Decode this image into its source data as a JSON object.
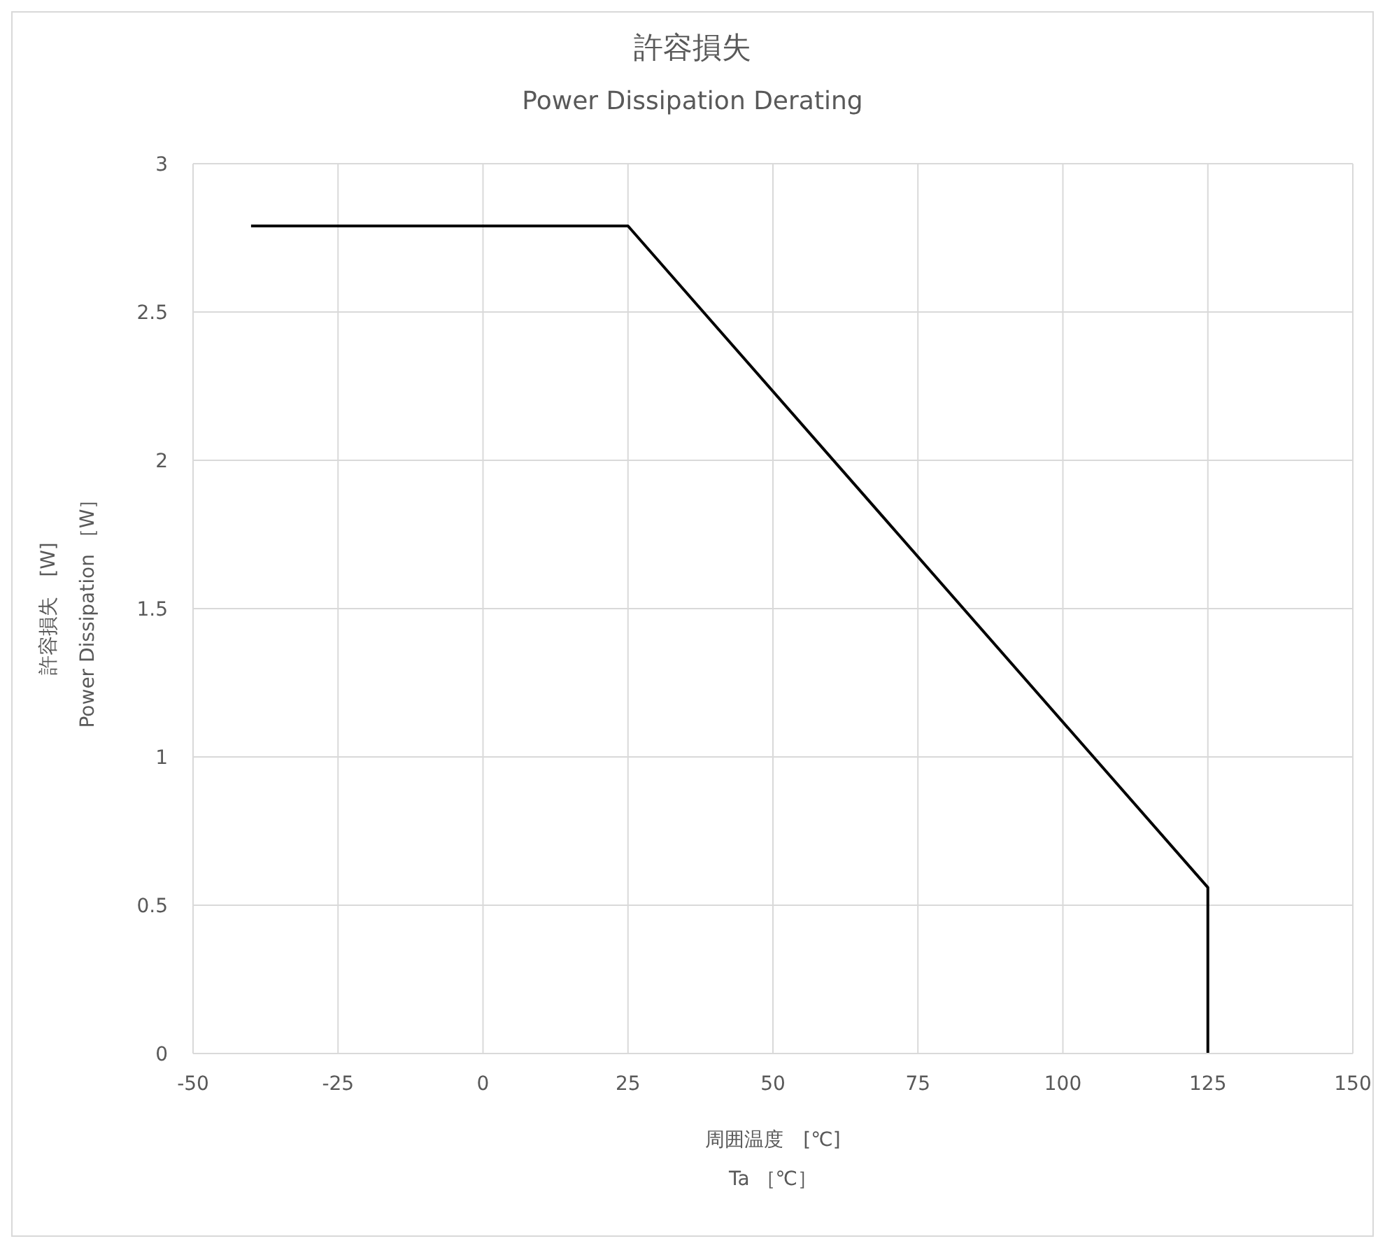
{
  "chart_data": {
    "type": "line",
    "title": "許容損失",
    "subtitle": "Power Dissipation Derating",
    "xlabel": "周囲温度　[℃]\nTa ［℃］",
    "ylabel": "許容損失　[W]\nPower Dissipation ［W］",
    "x": [
      -40,
      25,
      125,
      125
    ],
    "series": [
      {
        "color": "#000000",
        "values": [
          2.79,
          2.79,
          0.56,
          0
        ]
      }
    ],
    "xlim": [
      -50,
      150
    ],
    "xticks": [
      -50,
      -25,
      0,
      25,
      50,
      75,
      100,
      125,
      150
    ],
    "ylim": [
      0,
      3
    ],
    "yticks": [
      0,
      0.5,
      1,
      1.5,
      2,
      2.5,
      3
    ],
    "grid": true,
    "legend": false
  }
}
